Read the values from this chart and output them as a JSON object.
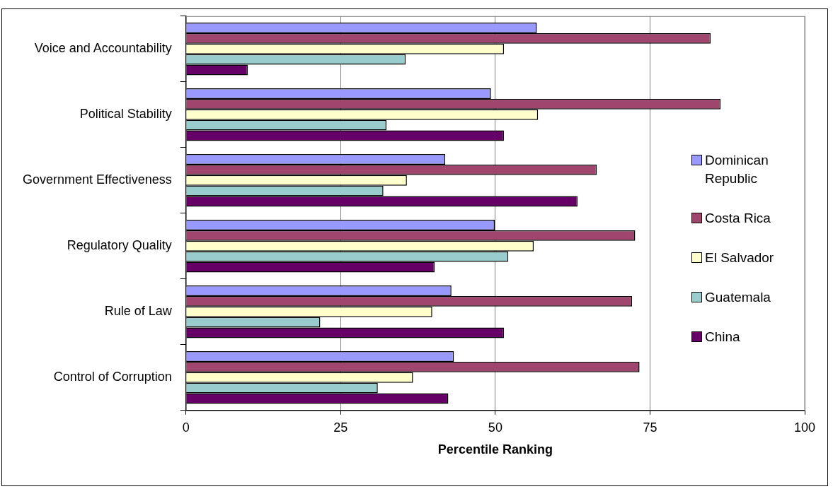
{
  "chart_data": {
    "type": "bar",
    "orientation": "horizontal",
    "xlabel": "Percentile Ranking",
    "categories": [
      "Voice and Accountability",
      "Political Stability",
      "Government Effectiveness",
      "Regulatory Quality",
      "Rule of Law",
      "Control of Corruption"
    ],
    "series": [
      {
        "name": "Dominican Republic",
        "color": "#9999ff",
        "values": [
          56.7,
          49.3,
          41.9,
          49.9,
          42.9,
          43.3
        ]
      },
      {
        "name": "Costa Rica",
        "color": "#a0456e",
        "values": [
          84.8,
          86.4,
          66.4,
          72.6,
          72.1,
          73.3
        ]
      },
      {
        "name": "El Salvador",
        "color": "#ffffcc",
        "values": [
          51.4,
          56.9,
          35.7,
          56.2,
          39.8,
          36.7
        ]
      },
      {
        "name": "Guatemala",
        "color": "#99cccc",
        "values": [
          35.5,
          32.4,
          31.9,
          52.1,
          21.7,
          31.0
        ]
      },
      {
        "name": "China",
        "color": "#660066",
        "values": [
          10.0,
          51.4,
          63.3,
          40.2,
          51.4,
          42.4
        ]
      }
    ],
    "xlim": [
      0,
      100
    ],
    "xticks": [
      0,
      25,
      50,
      75,
      100
    ],
    "grid": "x",
    "legend": "right"
  }
}
